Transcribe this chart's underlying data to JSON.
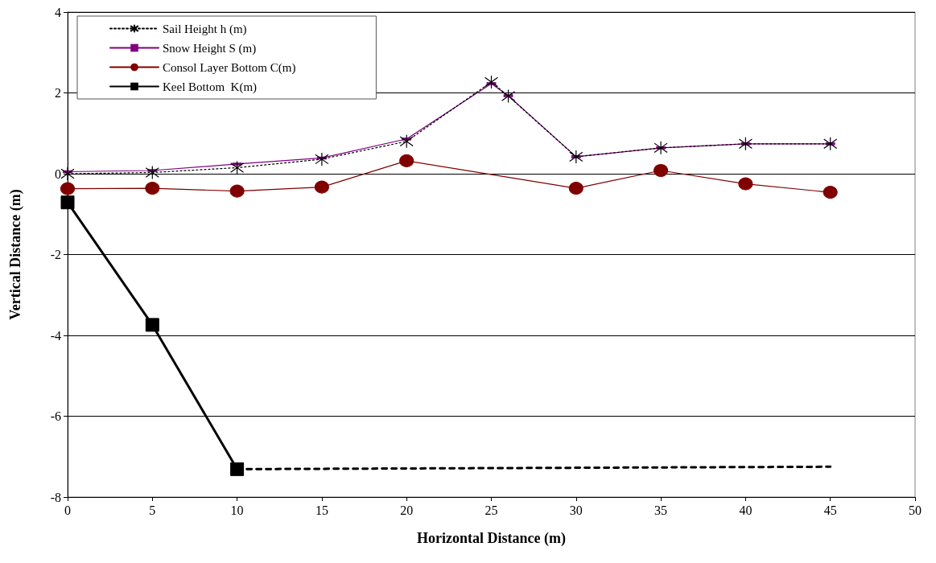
{
  "chart_data": {
    "type": "line",
    "xlabel": "Horizontal Distance (m)",
    "ylabel": "Vertical Distance (m)",
    "xlim": [
      0,
      50
    ],
    "xticks": [
      0,
      5,
      10,
      15,
      20,
      25,
      30,
      35,
      40,
      45,
      50
    ],
    "ylim": [
      -8,
      4
    ],
    "yticks": [
      -8,
      -6,
      -4,
      -2,
      0,
      2,
      4
    ],
    "grid": "y",
    "legend": "top left",
    "series": [
      {
        "name": "Sail Height h (m)",
        "color": "#000000",
        "marker": "cross",
        "line_style": "dotted",
        "x": [
          0,
          5,
          10,
          15,
          20,
          25,
          26,
          30,
          35,
          40,
          45
        ],
        "values": [
          0,
          0.03,
          0.15,
          0.36,
          0.8,
          2.27,
          1.92,
          0.42,
          0.64,
          0.74,
          0.74
        ]
      },
      {
        "name": "Snow Height S (m)",
        "color": "#800080",
        "marker": "square",
        "line_style": "solid",
        "x": [
          0,
          5,
          10,
          15,
          20,
          25,
          26,
          30,
          35,
          40,
          45
        ],
        "values": [
          0.05,
          0.08,
          0.24,
          0.39,
          0.86,
          2.23,
          1.93,
          0.42,
          0.64,
          0.74,
          0.74
        ]
      },
      {
        "name": "Consol Layer Bottom C(m)",
        "color": "#800000",
        "marker": "circle",
        "line_style": "solid",
        "x": [
          0,
          5,
          10,
          15,
          20,
          30,
          35,
          40,
          45
        ],
        "values": [
          -0.37,
          -0.36,
          -0.43,
          -0.33,
          0.32,
          -0.36,
          0.08,
          -0.25,
          -0.46
        ]
      },
      {
        "name": "Keel Bottom  K(m)",
        "color": "#000000",
        "marker": "square",
        "line_style": "solid",
        "x": [
          0,
          5,
          10
        ],
        "values": [
          -0.71,
          -3.74,
          -7.31
        ]
      },
      {
        "color": "#000000",
        "marker": "none",
        "line_style": "dashed",
        "x": [
          10,
          45
        ],
        "values": [
          -7.31,
          -7.25
        ]
      }
    ]
  }
}
